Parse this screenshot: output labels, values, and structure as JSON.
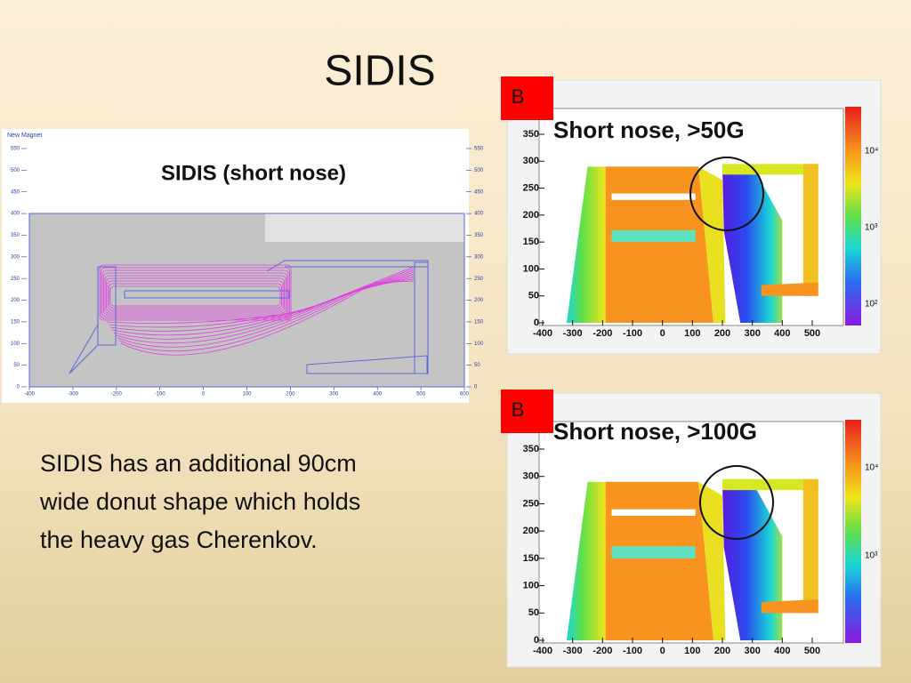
{
  "title": "SIDIS",
  "left_panel": {
    "label": "New Magnet",
    "caption": "SIDIS (short nose)",
    "yticks": [
      0,
      50,
      100,
      150,
      200,
      250,
      300,
      350,
      400,
      450,
      500,
      550
    ],
    "xticks": [
      -400,
      -300,
      -200,
      -100,
      0,
      100,
      200,
      300,
      400,
      500,
      600
    ]
  },
  "body_text": [
    "SIDIS has an additional 90cm",
    "wide donut shape which holds",
    "the heavy gas Cherenkov."
  ],
  "plots": [
    {
      "badge": "B",
      "caption": "Short nose, >50G",
      "yticks": [
        0,
        50,
        100,
        150,
        200,
        250,
        300,
        350
      ],
      "xticks": [
        -400,
        -300,
        -200,
        -100,
        0,
        100,
        200,
        300,
        400,
        500
      ],
      "colorbar_labels": [
        "10⁴",
        "10³",
        "10²"
      ]
    },
    {
      "badge": "B",
      "caption": "Short nose, >100G",
      "yticks": [
        0,
        50,
        100,
        150,
        200,
        250,
        300,
        350
      ],
      "xticks": [
        -400,
        -300,
        -200,
        -100,
        0,
        100,
        200,
        300,
        400,
        500
      ],
      "colorbar_labels": [
        "10⁴",
        "10³"
      ]
    }
  ]
}
